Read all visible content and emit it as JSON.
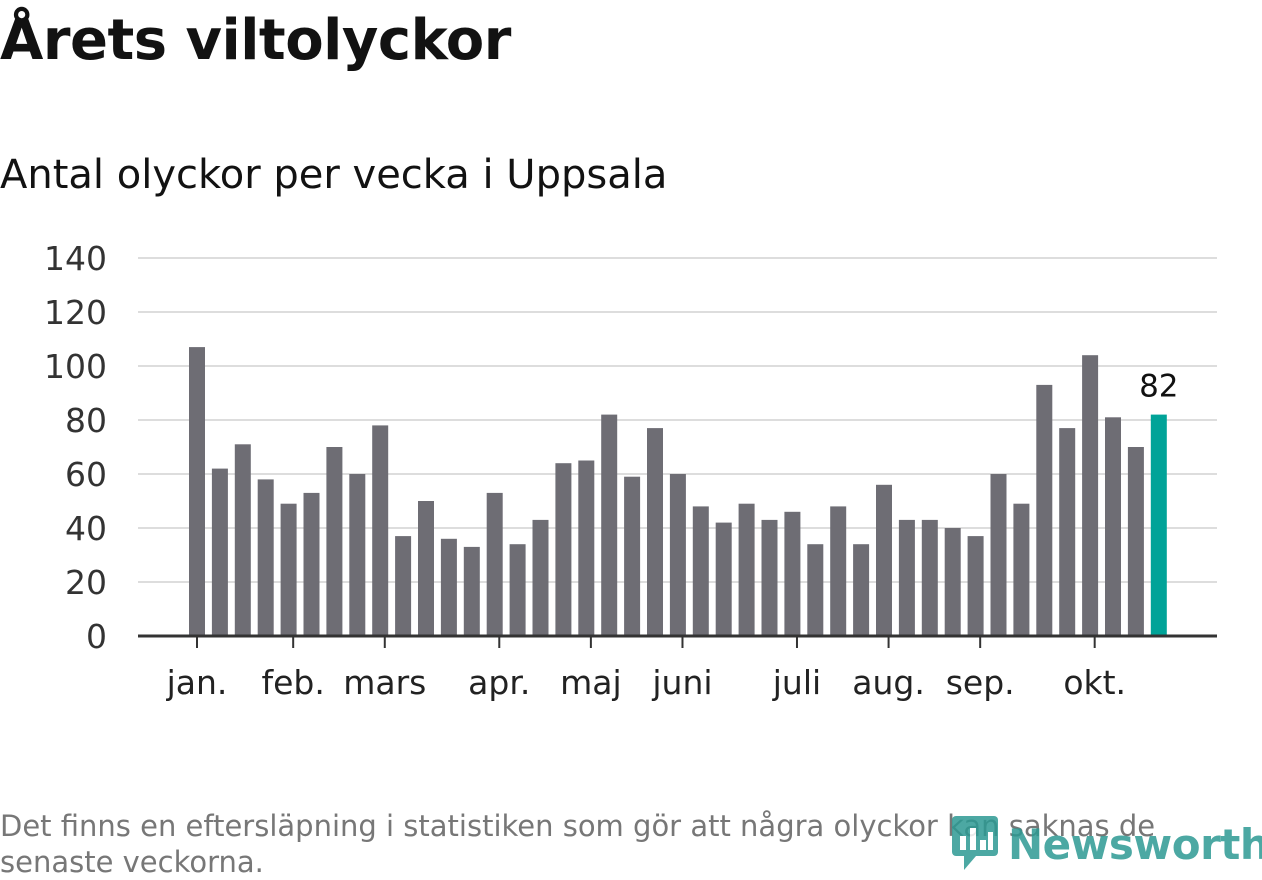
{
  "title": "Årets viltolyckor",
  "subtitle": "Antal olyckor per vecka i Uppsala",
  "footnote": "Det finns en eftersläpning i statistiken som gör att några olyckor kan saknas de senaste veckorna.",
  "logo": {
    "text": "Newsworthy",
    "icon": "newsworthy-logo-icon"
  },
  "colors": {
    "bar": "#6e6d74",
    "highlight": "#00a398",
    "grid": "#dddddd",
    "axis": "#333333"
  },
  "chart_data": {
    "type": "bar",
    "title": "Antal olyckor per vecka i Uppsala",
    "xlabel": "",
    "ylabel": "",
    "ylim": [
      0,
      140
    ],
    "yticks": [
      0,
      20,
      40,
      60,
      80,
      100,
      120,
      140
    ],
    "values": [
      107,
      62,
      71,
      58,
      49,
      53,
      70,
      60,
      78,
      37,
      50,
      36,
      33,
      53,
      34,
      43,
      64,
      65,
      82,
      59,
      77,
      60,
      48,
      42,
      49,
      43,
      46,
      34,
      48,
      34,
      56,
      43,
      43,
      40,
      37,
      60,
      49,
      93,
      77,
      104,
      81,
      70,
      82
    ],
    "highlight_index": 42,
    "highlight_label": "82",
    "month_ticks": [
      {
        "label": "jan.",
        "position": 0
      },
      {
        "label": "feb.",
        "position": 4.2
      },
      {
        "label": "mars",
        "position": 8.2
      },
      {
        "label": "apr.",
        "position": 13.2
      },
      {
        "label": "maj",
        "position": 17.2
      },
      {
        "label": "juni",
        "position": 21.2
      },
      {
        "label": "juli",
        "position": 26.2
      },
      {
        "label": "aug.",
        "position": 30.2
      },
      {
        "label": "sep.",
        "position": 34.2
      },
      {
        "label": "okt.",
        "position": 39.2
      }
    ],
    "grid": true
  }
}
